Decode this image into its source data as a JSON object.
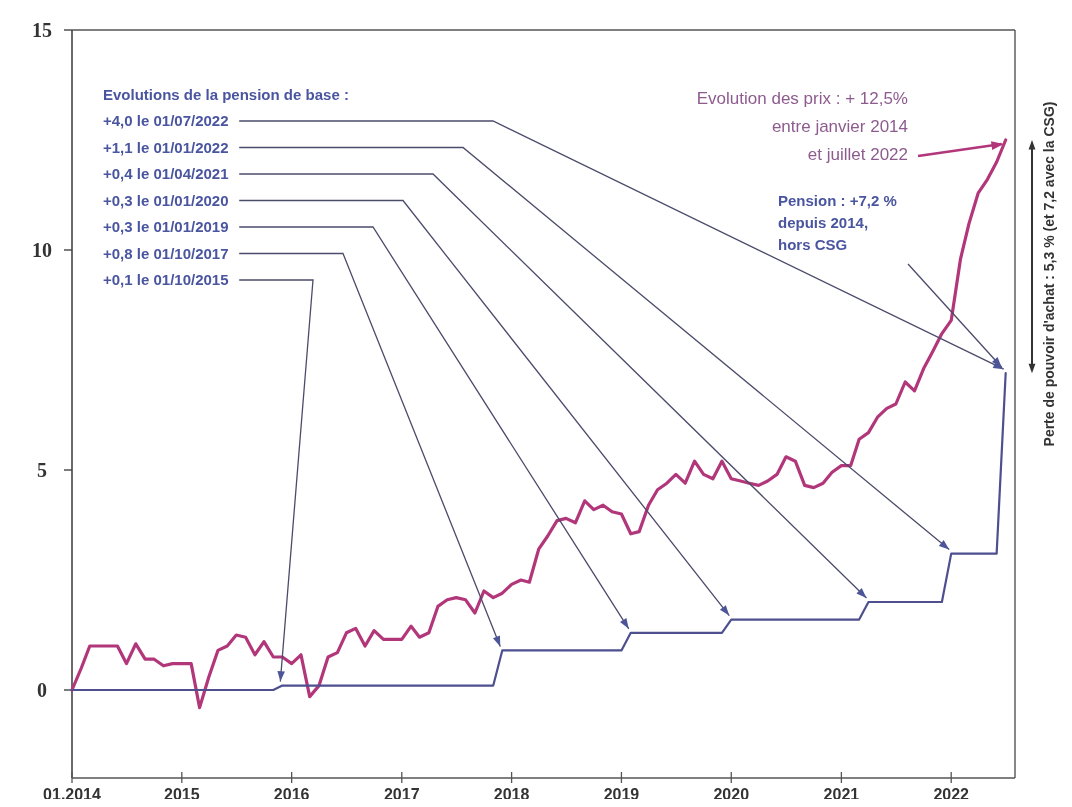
{
  "chart_data": {
    "type": "line",
    "xlim": [
      "2014-01",
      "2022-08"
    ],
    "xticks": [
      {
        "value": "2014-01",
        "label": "01.2014"
      },
      "2015",
      "2016",
      "2017",
      "2018",
      "2019",
      "2020",
      "2021",
      "2022"
    ],
    "ylim": [
      -2,
      15
    ],
    "yticks": [
      0,
      5,
      10,
      15
    ],
    "grid": false,
    "marker": "none",
    "line_style": "solid",
    "series": [
      {
        "color": "#b2367a",
        "x": [
          "2014-01",
          "2014-02",
          "2014-03",
          "2014-04",
          "2014-05",
          "2014-06",
          "2014-07",
          "2014-08",
          "2014-09",
          "2014-10",
          "2014-11",
          "2014-12",
          "2015-01",
          "2015-02",
          "2015-03",
          "2015-04",
          "2015-05",
          "2015-06",
          "2015-07",
          "2015-08",
          "2015-09",
          "2015-10",
          "2015-11",
          "2015-12",
          "2016-01",
          "2016-02",
          "2016-03",
          "2016-04",
          "2016-05",
          "2016-06",
          "2016-07",
          "2016-08",
          "2016-09",
          "2016-10",
          "2016-11",
          "2016-12",
          "2017-01",
          "2017-02",
          "2017-03",
          "2017-04",
          "2017-05",
          "2017-06",
          "2017-07",
          "2017-08",
          "2017-09",
          "2017-10",
          "2017-11",
          "2017-12",
          "2018-01",
          "2018-02",
          "2018-03",
          "2018-04",
          "2018-05",
          "2018-06",
          "2018-07",
          "2018-08",
          "2018-09",
          "2018-10",
          "2018-11",
          "2018-12",
          "2019-01",
          "2019-02",
          "2019-03",
          "2019-04",
          "2019-05",
          "2019-06",
          "2019-07",
          "2019-08",
          "2019-09",
          "2019-10",
          "2019-11",
          "2019-12",
          "2020-01",
          "2020-02",
          "2020-03",
          "2020-04",
          "2020-05",
          "2020-06",
          "2020-07",
          "2020-08",
          "2020-09",
          "2020-10",
          "2020-11",
          "2020-12",
          "2021-01",
          "2021-02",
          "2021-03",
          "2021-04",
          "2021-05",
          "2021-06",
          "2021-07",
          "2021-08",
          "2021-09",
          "2021-10",
          "2021-11",
          "2021-12",
          "2022-01",
          "2022-02",
          "2022-03",
          "2022-04",
          "2022-05",
          "2022-06",
          "2022-07"
        ],
        "values": [
          0,
          0.5,
          1.0,
          1.0,
          1.0,
          1.0,
          0.6,
          1.05,
          0.7,
          0.7,
          0.55,
          0.6,
          0.6,
          0.6,
          -0.4,
          0.3,
          0.9,
          1.0,
          1.25,
          1.2,
          0.8,
          1.1,
          0.75,
          0.75,
          0.6,
          0.8,
          -0.15,
          0.1,
          0.75,
          0.85,
          1.3,
          1.4,
          1.0,
          1.35,
          1.15,
          1.15,
          1.15,
          1.45,
          1.2,
          1.3,
          1.9,
          2.05,
          2.1,
          2.05,
          1.75,
          2.25,
          2.1,
          2.2,
          2.4,
          2.5,
          2.45,
          3.2,
          3.5,
          3.85,
          3.9,
          3.8,
          4.3,
          4.1,
          4.2,
          4.05,
          4.0,
          3.55,
          3.6,
          4.2,
          4.55,
          4.7,
          4.9,
          4.7,
          5.2,
          4.9,
          4.8,
          5.2,
          4.8,
          4.75,
          4.7,
          4.65,
          4.75,
          4.9,
          5.3,
          5.2,
          4.65,
          4.6,
          4.7,
          4.95,
          5.1,
          5.1,
          5.7,
          5.85,
          6.2,
          6.4,
          6.5,
          7.0,
          6.8,
          7.3,
          7.7,
          8.1,
          8.4,
          9.8,
          10.6,
          11.3,
          11.6,
          12.0,
          12.5
        ]
      },
      {
        "color": "#4d4f8f",
        "x": [
          "2014-01",
          "2015-11",
          "2015-12",
          "2017-11",
          "2017-12",
          "2019-01",
          "2019-02",
          "2019-12",
          "2020-01",
          "2021-03",
          "2021-04",
          "2021-12",
          "2022-01",
          "2022-06",
          "2022-07"
        ],
        "values": [
          0,
          0,
          0.1,
          0.1,
          0.9,
          0.9,
          1.3,
          1.3,
          1.6,
          1.6,
          2.0,
          2.0,
          3.1,
          3.1,
          7.2
        ]
      }
    ],
    "annotations": [
      "Evolutions de la pension de base :",
      {
        "text": "+4,0 le 01/07/2022",
        "x": "2022-07",
        "y": 7.2
      },
      {
        "text": "+1,1 le 01/01/2022",
        "x": "2022-01",
        "y": 3.1
      },
      {
        "text": "+0,4 le 01/04/2021",
        "x": "2021-04",
        "y": 2.0
      },
      {
        "text": "+0,3 le 01/01/2020",
        "x": "2020-01",
        "y": 1.6
      },
      {
        "text": "+0,3 le 01/01/2019",
        "x": "2019-02",
        "y": 1.3
      },
      {
        "text": "+0,8 le 01/10/2017",
        "x": "2017-12",
        "y": 0.9
      },
      {
        "text": "+0,1 le 01/10/2015",
        "x": "2015-12",
        "y": 0.1
      },
      {
        "text": "Evolution des prix : + 12,5%\nentre janvier 2014\net juillet 2022",
        "x": "2022-07",
        "y": 12.5
      },
      {
        "text": "Pension : +7,2 %\ndepuis 2014,\nhors CSG",
        "x": "2022-07",
        "y": 7.2
      },
      "Perte de pouvoir d'achat : 5,3 % (et 7,2 avec la CSG)"
    ]
  }
}
